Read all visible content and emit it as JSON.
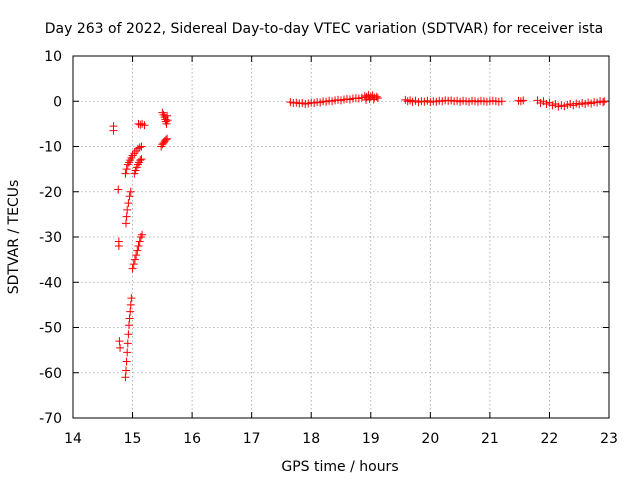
{
  "chart_data": {
    "type": "scatter",
    "title": "Day 263 of 2022, Sidereal Day-to-day VTEC variation (SDTVAR) for receiver ista",
    "xlabel": "GPS time / hours",
    "ylabel": "SDTVAR / TECUs",
    "xlim": [
      14,
      23
    ],
    "ylim": [
      -70,
      10
    ],
    "xticks": [
      "14",
      "15",
      "16",
      "17",
      "18",
      "19",
      "20",
      "21",
      "22",
      "23"
    ],
    "yticks": [
      "10",
      "0",
      "-10",
      "-20",
      "-30",
      "-40",
      "-50",
      "-60",
      "-70"
    ],
    "grid": true,
    "marker": "+",
    "color": "#ff0000",
    "series": [
      {
        "name": "SDTVAR",
        "points": [
          [
            14.68,
            -5.5
          ],
          [
            14.68,
            -6.5
          ],
          [
            14.76,
            -19.5
          ],
          [
            14.77,
            -31
          ],
          [
            14.77,
            -32
          ],
          [
            14.78,
            -53
          ],
          [
            14.79,
            -54.5
          ],
          [
            14.88,
            -61
          ],
          [
            14.89,
            -59.5
          ],
          [
            14.9,
            -57.5
          ],
          [
            14.91,
            -55.5
          ],
          [
            14.92,
            -53.5
          ],
          [
            14.93,
            -51.5
          ],
          [
            14.94,
            -49.5
          ],
          [
            14.95,
            -48
          ],
          [
            14.96,
            -46.5
          ],
          [
            14.97,
            -45
          ],
          [
            14.98,
            -43.5
          ],
          [
            14.89,
            -27
          ],
          [
            14.9,
            -25.5
          ],
          [
            14.91,
            -24
          ],
          [
            14.93,
            -22.5
          ],
          [
            14.95,
            -21
          ],
          [
            14.97,
            -20
          ],
          [
            14.88,
            -16
          ],
          [
            14.9,
            -15
          ],
          [
            14.92,
            -14
          ],
          [
            14.94,
            -13.5
          ],
          [
            14.96,
            -13
          ],
          [
            14.98,
            -12.5
          ],
          [
            15.0,
            -12
          ],
          [
            15.03,
            -11.5
          ],
          [
            15.06,
            -11
          ],
          [
            15.09,
            -10.5
          ],
          [
            15.12,
            -10.2
          ],
          [
            15.15,
            -10
          ],
          [
            15.0,
            -37
          ],
          [
            15.02,
            -36
          ],
          [
            15.04,
            -35
          ],
          [
            15.06,
            -34
          ],
          [
            15.08,
            -33
          ],
          [
            15.1,
            -32
          ],
          [
            15.12,
            -31
          ],
          [
            15.14,
            -30
          ],
          [
            15.16,
            -29.5
          ],
          [
            15.03,
            -16
          ],
          [
            15.05,
            -15.3
          ],
          [
            15.07,
            -14.6
          ],
          [
            15.09,
            -14
          ],
          [
            15.11,
            -13.5
          ],
          [
            15.13,
            -13
          ],
          [
            15.15,
            -12.8
          ],
          [
            15.1,
            -5
          ],
          [
            15.13,
            -5.2
          ],
          [
            15.16,
            -5
          ],
          [
            15.2,
            -5.3
          ],
          [
            15.48,
            -10
          ],
          [
            15.5,
            -9.5
          ],
          [
            15.52,
            -9.2
          ],
          [
            15.54,
            -8.8
          ],
          [
            15.56,
            -8.5
          ],
          [
            15.58,
            -8.3
          ],
          [
            15.5,
            -2.5
          ],
          [
            15.52,
            -3
          ],
          [
            15.54,
            -3.5
          ],
          [
            15.55,
            -4
          ],
          [
            15.56,
            -4.5
          ],
          [
            15.57,
            -5
          ],
          [
            15.58,
            -3.2
          ],
          [
            15.59,
            -4.2
          ],
          [
            17.65,
            -0.2
          ],
          [
            17.7,
            -0.4
          ],
          [
            17.75,
            -0.3
          ],
          [
            17.8,
            -0.5
          ],
          [
            17.85,
            -0.4
          ],
          [
            17.9,
            -0.6
          ],
          [
            17.95,
            -0.5
          ],
          [
            18.0,
            -0.3
          ],
          [
            18.05,
            -0.4
          ],
          [
            18.1,
            -0.2
          ],
          [
            18.15,
            -0.3
          ],
          [
            18.2,
            0
          ],
          [
            18.25,
            -0.1
          ],
          [
            18.3,
            0.1
          ],
          [
            18.35,
            0
          ],
          [
            18.4,
            0.2
          ],
          [
            18.45,
            0.3
          ],
          [
            18.5,
            0.2
          ],
          [
            18.55,
            0.4
          ],
          [
            18.6,
            0.5
          ],
          [
            18.65,
            0.4
          ],
          [
            18.7,
            0.6
          ],
          [
            18.75,
            0.7
          ],
          [
            18.8,
            0.6
          ],
          [
            18.85,
            0.8
          ],
          [
            18.9,
            1.2
          ],
          [
            18.93,
            0.9
          ],
          [
            18.96,
            1.4
          ],
          [
            19.0,
            1.0
          ],
          [
            19.03,
            1.3
          ],
          [
            19.06,
            0.8
          ],
          [
            19.1,
            1.0
          ],
          [
            19.12,
            0.7
          ],
          [
            18.92,
            0.3
          ],
          [
            18.98,
            0.5
          ],
          [
            19.05,
            0.4
          ],
          [
            19.58,
            0.3
          ],
          [
            19.62,
            0
          ],
          [
            19.66,
            0.2
          ],
          [
            19.7,
            -0.1
          ],
          [
            19.75,
            0.1
          ],
          [
            19.8,
            -0.2
          ],
          [
            19.85,
            0
          ],
          [
            19.9,
            -0.1
          ],
          [
            19.95,
            0.1
          ],
          [
            20.0,
            -0.2
          ],
          [
            20.05,
            0
          ],
          [
            20.1,
            -0.1
          ],
          [
            20.15,
            0.1
          ],
          [
            20.2,
            0
          ],
          [
            20.25,
            0.2
          ],
          [
            20.3,
            0.1
          ],
          [
            20.35,
            0.2
          ],
          [
            20.4,
            0
          ],
          [
            20.45,
            0.1
          ],
          [
            20.5,
            -0.1
          ],
          [
            20.55,
            0.1
          ],
          [
            20.6,
            0
          ],
          [
            20.65,
            -0.1
          ],
          [
            20.7,
            0.1
          ],
          [
            20.75,
            0
          ],
          [
            20.8,
            -0.1
          ],
          [
            20.85,
            0.1
          ],
          [
            20.9,
            0
          ],
          [
            20.95,
            -0.1
          ],
          [
            21.0,
            0
          ],
          [
            21.05,
            0.1
          ],
          [
            21.1,
            0
          ],
          [
            21.15,
            -0.1
          ],
          [
            21.2,
            0
          ],
          [
            21.48,
            0.1
          ],
          [
            21.52,
            0
          ],
          [
            21.56,
            0.2
          ],
          [
            21.8,
            0.2
          ],
          [
            21.85,
            -0.4
          ],
          [
            21.9,
            0
          ],
          [
            21.95,
            -0.6
          ],
          [
            22.0,
            -0.3
          ],
          [
            22.05,
            -0.9
          ],
          [
            22.1,
            -0.6
          ],
          [
            22.15,
            -1.2
          ],
          [
            22.2,
            -0.9
          ],
          [
            22.25,
            -1.1
          ],
          [
            22.3,
            -0.8
          ],
          [
            22.35,
            -0.6
          ],
          [
            22.4,
            -0.9
          ],
          [
            22.45,
            -0.5
          ],
          [
            22.5,
            -0.7
          ],
          [
            22.55,
            -0.4
          ],
          [
            22.6,
            -0.6
          ],
          [
            22.65,
            -0.3
          ],
          [
            22.7,
            -0.5
          ],
          [
            22.75,
            -0.2
          ],
          [
            22.8,
            -0.3
          ],
          [
            22.85,
            0
          ],
          [
            22.9,
            -0.2
          ],
          [
            22.92,
            0
          ]
        ]
      }
    ]
  }
}
